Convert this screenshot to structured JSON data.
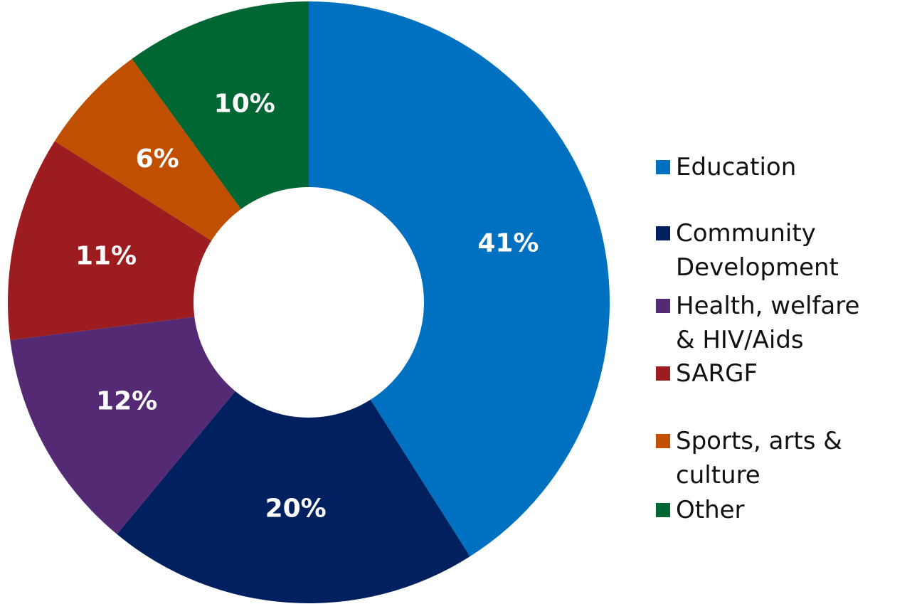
{
  "chart_data": {
    "type": "donut",
    "categories": [
      "Education",
      "Community Development",
      "Health, welfare & HIV/Aids",
      "SARGF",
      "Sports, arts & culture",
      "Other"
    ],
    "values": [
      41,
      20,
      12,
      11,
      6,
      10
    ],
    "value_labels": [
      "41%",
      "20%",
      "12%",
      "11%",
      "6%",
      "10%"
    ],
    "colors": [
      "#0070c0",
      "#002060",
      "#532a73",
      "#9c1c20",
      "#c04f00",
      "#006633"
    ],
    "legend": "right"
  }
}
